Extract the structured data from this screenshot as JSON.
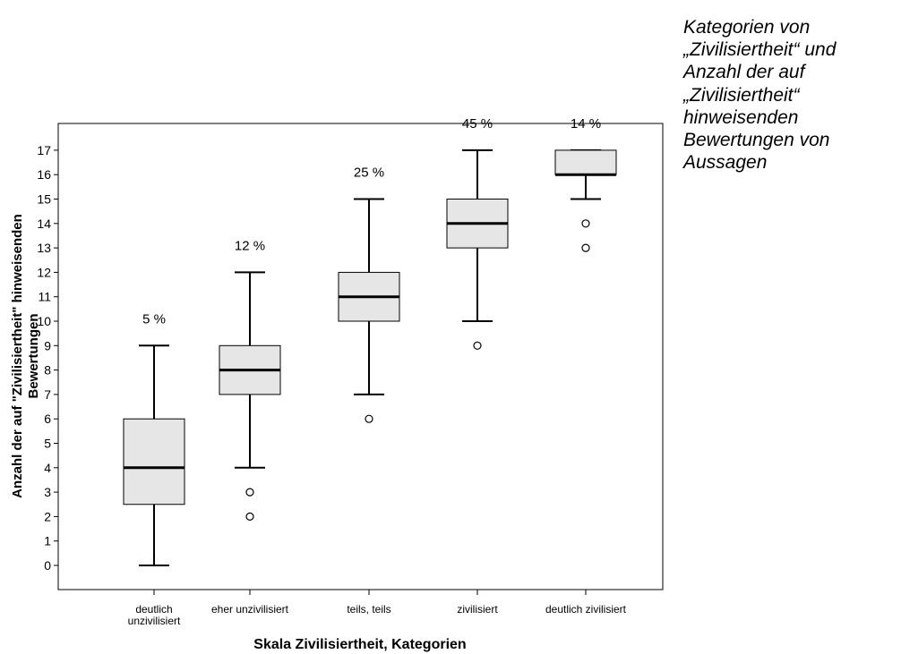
{
  "caption": {
    "lines": [
      "Kategorien von",
      "„Zivilisiertheit“ und",
      "Anzahl der auf",
      "„Zivilisiertheit“",
      "hinweisenden",
      "Bewertungen von",
      "Aussagen"
    ]
  },
  "chart_data": {
    "type": "boxplot",
    "xlabel": "Skala Zivilisiertheit, Kategorien",
    "ylabel_lines": [
      "Anzahl der auf \"Zivilisiertheit\" hinweisenden",
      "Bewertungen"
    ],
    "ylim": [
      -1,
      18
    ],
    "yticks": [
      0,
      1,
      2,
      3,
      4,
      5,
      6,
      7,
      8,
      9,
      10,
      11,
      12,
      13,
      14,
      15,
      16,
      17
    ],
    "grid": false,
    "categories": [
      {
        "label_lines": [
          "deutlich",
          "unzivilisiert"
        ],
        "percent": "5 %",
        "whisker_low": 0,
        "q1": 2.5,
        "median": 4,
        "q3": 6,
        "whisker_high": 9,
        "outliers": []
      },
      {
        "label_lines": [
          "eher unzivilisiert"
        ],
        "percent": "12 %",
        "whisker_low": 4,
        "q1": 7,
        "median": 8,
        "q3": 9,
        "whisker_high": 12,
        "outliers": [
          3,
          2
        ]
      },
      {
        "label_lines": [
          "teils, teils"
        ],
        "percent": "25 %",
        "whisker_low": 7,
        "q1": 10,
        "median": 11,
        "q3": 12,
        "whisker_high": 15,
        "outliers": [
          6
        ]
      },
      {
        "label_lines": [
          "zivilisiert"
        ],
        "percent": "45 %",
        "whisker_low": 10,
        "q1": 13,
        "median": 14,
        "q3": 15,
        "whisker_high": 17,
        "outliers": [
          9
        ]
      },
      {
        "label_lines": [
          "deutlich zivilisiert"
        ],
        "percent": "14 %",
        "whisker_low": 15,
        "q1": 16,
        "median": 16,
        "q3": 17,
        "whisker_high": 17,
        "outliers": [
          14,
          13
        ]
      }
    ]
  }
}
